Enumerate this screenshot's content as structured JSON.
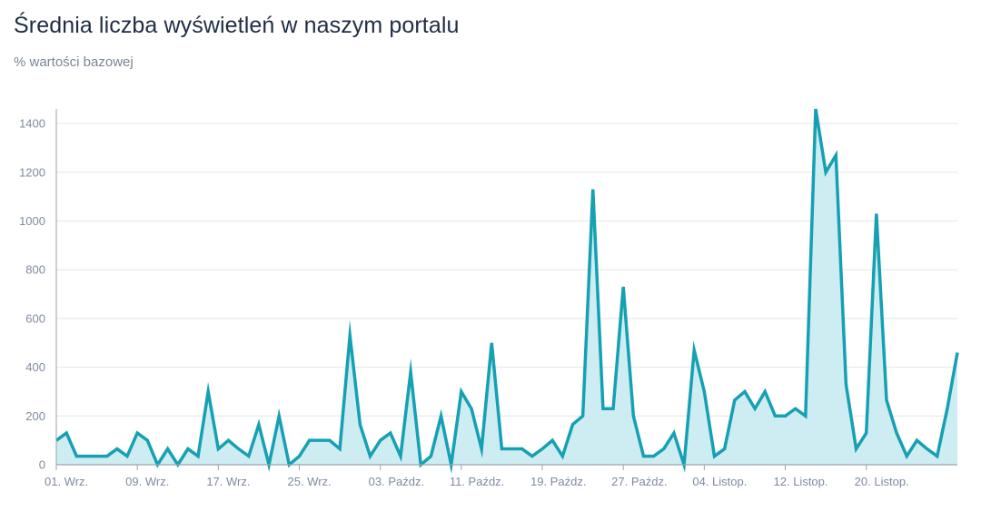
{
  "title": "Średnia liczba wyświetleń w naszym portalu",
  "subtitle": "% wartości bazowej",
  "colors": {
    "line": "#16a0b4",
    "area": "#c9ebf1",
    "grid": "#e2e5ea",
    "axis": "#9aa3ad",
    "title": "#1f2d45",
    "ticks": "#7f8aa0"
  },
  "chart_data": {
    "type": "area",
    "title": "Średnia liczba wyświetleń w naszym portalu",
    "subtitle": "% wartości bazowej",
    "xlabel": "",
    "ylabel": "",
    "ylim": [
      0,
      1460
    ],
    "yticks": [
      0,
      200,
      400,
      600,
      800,
      1000,
      1200,
      1400
    ],
    "grid": true,
    "x_start": "01. Wrz.",
    "x_tick_labels": [
      "01. Wrz.",
      "09. Wrz.",
      "17. Wrz.",
      "25. Wrz.",
      "03. Paźdz.",
      "11. Paźdz.",
      "19. Paźdz.",
      "27. Paźdz.",
      "04. Listop.",
      "12. Listop.",
      "20. Listop."
    ],
    "x_tick_step_days": 8,
    "series": [
      {
        "values": [
          100,
          130,
          35,
          35,
          35,
          35,
          65,
          35,
          130,
          100,
          0,
          65,
          0,
          65,
          35,
          300,
          65,
          100,
          65,
          35,
          165,
          0,
          200,
          0,
          35,
          100,
          100,
          100,
          65,
          530,
          165,
          35,
          100,
          130,
          35,
          380,
          0,
          35,
          200,
          0,
          300,
          230,
          65,
          500,
          65,
          65,
          65,
          35,
          65,
          100,
          35,
          165,
          200,
          1130,
          230,
          230,
          730,
          200,
          35,
          35,
          65,
          130,
          0,
          470,
          300,
          35,
          65,
          265,
          300,
          230,
          300,
          200,
          200,
          230,
          200,
          1460,
          1200,
          1270,
          330,
          65,
          130,
          1030,
          265,
          130,
          35,
          100,
          65,
          35,
          230,
          460
        ]
      }
    ]
  }
}
